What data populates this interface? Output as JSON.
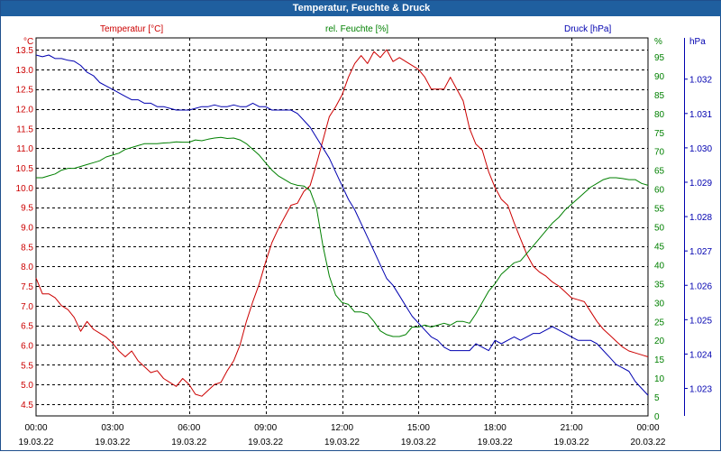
{
  "window": {
    "title": "Temperatur, Feuchte & Druck"
  },
  "colors": {
    "temperature": "#cc0000",
    "humidity": "#008000",
    "pressure": "#0000b0",
    "title_bar": "#1f5f9f",
    "grid": "#000000"
  },
  "chart_data": {
    "type": "line",
    "title": "Temperatur, Feuchte & Druck",
    "grid": true,
    "x_ticks": [
      {
        "time": "00:00",
        "date": "19.03.22"
      },
      {
        "time": "03:00",
        "date": "19.03.22"
      },
      {
        "time": "06:00",
        "date": "19.03.22"
      },
      {
        "time": "09:00",
        "date": "19.03.22"
      },
      {
        "time": "12:00",
        "date": "19.03.22"
      },
      {
        "time": "15:00",
        "date": "19.03.22"
      },
      {
        "time": "18:00",
        "date": "19.03.22"
      },
      {
        "time": "21:00",
        "date": "19.03.22"
      },
      {
        "time": "00:00",
        "date": "20.03.22"
      }
    ],
    "xlim": [
      "19.03.22 00:00",
      "20.03.22 00:00"
    ],
    "axes": {
      "temperature": {
        "label": "Temperatur [°C]",
        "unit": "°C",
        "ylim": [
          4.2,
          13.8
        ],
        "ticks": [
          "4.5",
          "5.0",
          "5.5",
          "6.0",
          "6.5",
          "7.0",
          "7.5",
          "8.0",
          "8.5",
          "9.0",
          "9.5",
          "10.0",
          "10.5",
          "11.0",
          "11.5",
          "12.0",
          "12.5",
          "13.0",
          "13.5"
        ]
      },
      "humidity": {
        "label": "rel. Feuchte [%]",
        "unit": "%",
        "ylim": [
          0,
          100
        ],
        "ticks": [
          "0",
          "5",
          "10",
          "15",
          "20",
          "25",
          "30",
          "35",
          "40",
          "45",
          "50",
          "55",
          "60",
          "65",
          "70",
          "75",
          "80",
          "85",
          "90",
          "95"
        ]
      },
      "pressure": {
        "label": "Druck [hPa]",
        "unit": "hPa",
        "ylim": [
          1.0222,
          1.0332
        ],
        "ticks": [
          "1.023",
          "1.024",
          "1.025",
          "1.026",
          "1.027",
          "1.028",
          "1.029",
          "1.030",
          "1.031",
          "1.032"
        ]
      }
    },
    "series": [
      {
        "name": "Temperatur [°C]",
        "axis": "temperature",
        "x": [
          "00:00",
          "00:15",
          "00:30",
          "00:45",
          "01:00",
          "01:15",
          "01:30",
          "01:45",
          "02:00",
          "02:15",
          "02:30",
          "02:45",
          "03:00",
          "03:15",
          "03:30",
          "03:45",
          "04:00",
          "04:15",
          "04:30",
          "04:45",
          "05:00",
          "05:15",
          "05:30",
          "05:45",
          "06:00",
          "06:15",
          "06:30",
          "06:45",
          "07:00",
          "07:15",
          "07:30",
          "07:45",
          "08:00",
          "08:15",
          "08:30",
          "08:45",
          "09:00",
          "09:15",
          "09:30",
          "09:45",
          "10:00",
          "10:15",
          "10:30",
          "10:45",
          "11:00",
          "11:15",
          "11:30",
          "11:45",
          "12:00",
          "12:15",
          "12:30",
          "12:45",
          "13:00",
          "13:15",
          "13:30",
          "13:45",
          "14:00",
          "14:15",
          "14:30",
          "14:45",
          "15:00",
          "15:15",
          "15:30",
          "15:45",
          "16:00",
          "16:15",
          "16:30",
          "16:45",
          "17:00",
          "17:15",
          "17:30",
          "17:45",
          "18:00",
          "18:15",
          "18:30",
          "18:45",
          "19:00",
          "19:15",
          "19:30",
          "19:45",
          "20:00",
          "20:15",
          "20:30",
          "20:45",
          "21:00",
          "21:15",
          "21:30",
          "21:45",
          "22:00",
          "22:15",
          "22:30",
          "22:45",
          "23:00",
          "23:15",
          "23:30",
          "23:45",
          "24:00"
        ],
        "values": [
          7.7,
          7.3,
          7.3,
          7.2,
          7.0,
          6.9,
          6.7,
          6.35,
          6.6,
          6.4,
          6.3,
          6.2,
          6.05,
          5.85,
          5.7,
          5.85,
          5.6,
          5.45,
          5.3,
          5.35,
          5.15,
          5.05,
          4.95,
          5.15,
          5.0,
          4.75,
          4.7,
          4.85,
          5.0,
          5.05,
          5.35,
          5.6,
          6.0,
          6.6,
          7.1,
          7.55,
          8.1,
          8.6,
          8.95,
          9.25,
          9.55,
          9.6,
          9.9,
          10.05,
          10.6,
          11.2,
          11.8,
          12.05,
          12.35,
          12.8,
          13.15,
          13.35,
          13.15,
          13.45,
          13.3,
          13.5,
          13.2,
          13.3,
          13.2,
          13.1,
          13.0,
          12.8,
          12.5,
          12.5,
          12.5,
          12.8,
          12.5,
          12.2,
          11.5,
          11.1,
          10.95,
          10.4,
          10.0,
          9.7,
          9.55,
          9.1,
          8.7,
          8.3,
          8.0,
          7.85,
          7.75,
          7.6,
          7.5,
          7.35,
          7.2,
          7.15,
          7.1,
          6.85,
          6.6,
          6.4,
          6.25,
          6.1,
          5.95,
          5.85,
          5.8,
          5.75,
          5.7
        ]
      },
      {
        "name": "rel. Feuchte [%]",
        "axis": "humidity",
        "x": [
          "00:00",
          "00:15",
          "00:30",
          "00:45",
          "01:00",
          "01:15",
          "01:30",
          "01:45",
          "02:00",
          "02:15",
          "02:30",
          "02:45",
          "03:00",
          "03:15",
          "03:30",
          "03:45",
          "04:00",
          "04:15",
          "04:30",
          "04:45",
          "05:00",
          "05:15",
          "05:30",
          "05:45",
          "06:00",
          "06:15",
          "06:30",
          "06:45",
          "07:00",
          "07:15",
          "07:30",
          "07:45",
          "08:00",
          "08:15",
          "08:30",
          "08:45",
          "09:00",
          "09:15",
          "09:30",
          "09:45",
          "10:00",
          "10:15",
          "10:30",
          "10:45",
          "11:00",
          "11:15",
          "11:30",
          "11:45",
          "12:00",
          "12:15",
          "12:30",
          "12:45",
          "13:00",
          "13:15",
          "13:30",
          "13:45",
          "14:00",
          "14:15",
          "14:30",
          "14:45",
          "15:00",
          "15:15",
          "15:30",
          "15:45",
          "16:00",
          "16:15",
          "16:30",
          "16:45",
          "17:00",
          "17:15",
          "17:30",
          "17:45",
          "18:00",
          "18:15",
          "18:30",
          "18:45",
          "19:00",
          "19:15",
          "19:30",
          "19:45",
          "20:00",
          "20:15",
          "20:30",
          "20:45",
          "21:00",
          "21:15",
          "21:30",
          "21:45",
          "22:00",
          "22:15",
          "22:30",
          "22:45",
          "23:00",
          "23:15",
          "23:30",
          "23:45",
          "24:00"
        ],
        "values": [
          63,
          63,
          63.5,
          64,
          65,
          65.5,
          65.5,
          66,
          66.5,
          67,
          67.5,
          68.5,
          69,
          69.5,
          70.5,
          71,
          71.5,
          72,
          72,
          72,
          72.2,
          72.3,
          72.5,
          72.4,
          72.4,
          73,
          72.8,
          73.2,
          73.5,
          73.7,
          73.4,
          73.5,
          73,
          72,
          70.5,
          69,
          67,
          65,
          63.5,
          62.5,
          61.5,
          61,
          60.8,
          59.6,
          55,
          45,
          37,
          32,
          30,
          29.5,
          27.5,
          27.5,
          27,
          25,
          22.5,
          21.5,
          21,
          21,
          21.5,
          23.5,
          23.5,
          24,
          23.5,
          24,
          24.5,
          24,
          25,
          25,
          24.5,
          27,
          30,
          33,
          35,
          37.5,
          39,
          40.5,
          41,
          43,
          45,
          47,
          49,
          51,
          52.5,
          54.5,
          56,
          57.5,
          59,
          60.5,
          61.5,
          62.5,
          63,
          63,
          62.8,
          62.5,
          62.5,
          61.5,
          61
        ]
      },
      {
        "name": "Druck [hPa]",
        "axis": "pressure",
        "x": [
          "00:00",
          "00:15",
          "00:30",
          "00:45",
          "01:00",
          "01:15",
          "01:30",
          "01:45",
          "02:00",
          "02:15",
          "02:30",
          "02:45",
          "03:00",
          "03:15",
          "03:30",
          "03:45",
          "04:00",
          "04:15",
          "04:30",
          "04:45",
          "05:00",
          "05:15",
          "05:30",
          "05:45",
          "06:00",
          "06:15",
          "06:30",
          "06:45",
          "07:00",
          "07:15",
          "07:30",
          "07:45",
          "08:00",
          "08:15",
          "08:30",
          "08:45",
          "09:00",
          "09:15",
          "09:30",
          "09:45",
          "10:00",
          "10:15",
          "10:30",
          "10:45",
          "11:00",
          "11:15",
          "11:30",
          "11:45",
          "12:00",
          "12:15",
          "12:30",
          "12:45",
          "13:00",
          "13:15",
          "13:30",
          "13:45",
          "14:00",
          "14:15",
          "14:30",
          "14:45",
          "15:00",
          "15:15",
          "15:30",
          "15:45",
          "16:00",
          "16:15",
          "16:30",
          "16:45",
          "17:00",
          "17:15",
          "17:30",
          "17:45",
          "18:00",
          "18:15",
          "18:30",
          "18:45",
          "19:00",
          "19:15",
          "19:30",
          "19:45",
          "20:00",
          "20:15",
          "20:30",
          "20:45",
          "21:00",
          "21:15",
          "21:30",
          "21:45",
          "22:00",
          "22:15",
          "22:30",
          "22:45",
          "23:00",
          "23:15",
          "23:30",
          "23:45",
          "24:00"
        ],
        "values": [
          1.0327,
          1.03265,
          1.0327,
          1.0326,
          1.0326,
          1.03255,
          1.03252,
          1.0324,
          1.0322,
          1.0321,
          1.0319,
          1.0318,
          1.0317,
          1.0316,
          1.0315,
          1.0314,
          1.0314,
          1.0313,
          1.0313,
          1.0312,
          1.0312,
          1.03115,
          1.0311,
          1.0311,
          1.0311,
          1.03115,
          1.0312,
          1.0312,
          1.03125,
          1.0312,
          1.0312,
          1.03125,
          1.0312,
          1.0312,
          1.0313,
          1.0312,
          1.0312,
          1.0311,
          1.0311,
          1.0311,
          1.0311,
          1.031,
          1.0308,
          1.0306,
          1.0303,
          1.03,
          1.0297,
          1.0293,
          1.0289,
          1.0285,
          1.0282,
          1.0278,
          1.0274,
          1.027,
          1.0266,
          1.0262,
          1.026,
          1.0257,
          1.0254,
          1.0251,
          1.0249,
          1.0247,
          1.0245,
          1.0244,
          1.0242,
          1.0241,
          1.0241,
          1.0241,
          1.0241,
          1.0243,
          1.0242,
          1.0241,
          1.0244,
          1.0243,
          1.0244,
          1.0245,
          1.0244,
          1.0245,
          1.0246,
          1.0246,
          1.0247,
          1.0248,
          1.0247,
          1.0246,
          1.0245,
          1.0244,
          1.0244,
          1.0244,
          1.0243,
          1.0241,
          1.0239,
          1.0237,
          1.0236,
          1.0235,
          1.0232,
          1.023,
          1.0228
        ]
      }
    ]
  }
}
